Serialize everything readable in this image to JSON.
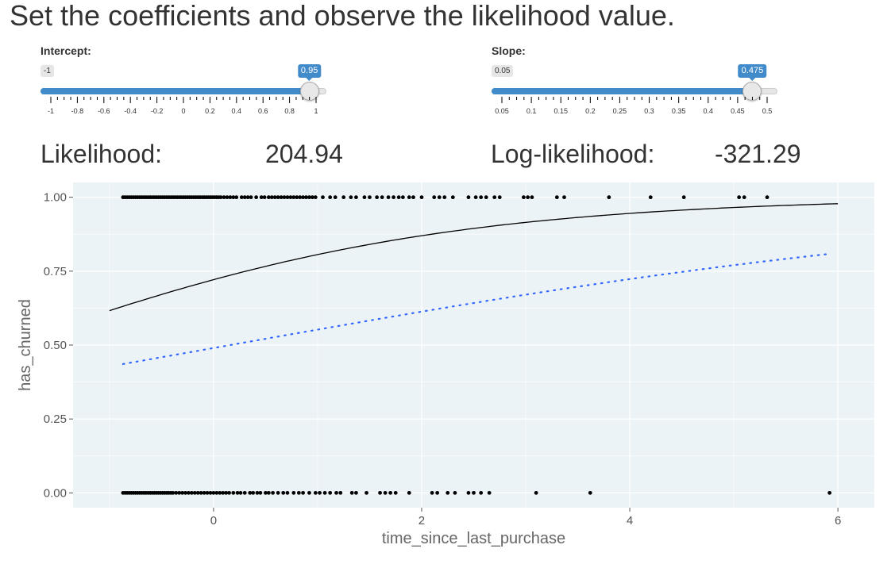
{
  "page": {
    "title": "Set the coefficients and observe the likelihood value."
  },
  "sliders": {
    "intercept": {
      "label": "Intercept:",
      "min": -1,
      "max": 1,
      "value": 0.95,
      "min_text": "-1",
      "value_text": "0.95",
      "ticks": [
        "-1",
        "-0.8",
        "-0.6",
        "-0.4",
        "-0.2",
        "0",
        "0.2",
        "0.4",
        "0.6",
        "0.8",
        "1"
      ],
      "step": 0.05
    },
    "slope": {
      "label": "Slope:",
      "min": 0.05,
      "max": 0.5,
      "value": 0.475,
      "min_text": "0.05",
      "value_text": "0.475",
      "ticks": [
        "0.05",
        "0.1",
        "0.15",
        "0.2",
        "0.25",
        "0.3",
        "0.35",
        "0.4",
        "0.45",
        "0.5"
      ],
      "step": 0.025
    }
  },
  "metrics": {
    "likelihood_label": "Likelihood:",
    "likelihood_value": "204.94",
    "loglik_label": "Log-likelihood:",
    "loglik_value": "-321.29"
  },
  "colors": {
    "accent": "#428bca",
    "panel_bg": "#ebf3f6",
    "grid": "#ffffff",
    "points": "#000000",
    "fit_line": "#000000",
    "dotted_line": "#3366ff"
  },
  "chart_data": {
    "type": "scatter",
    "xlabel": "time_since_last_purchase",
    "ylabel": "has_churned",
    "xlim": [
      -1.35,
      6.35
    ],
    "ylim": [
      -0.05,
      1.05
    ],
    "x_ticks": [
      0,
      2,
      4,
      6
    ],
    "y_ticks": [
      0,
      0.25,
      0.5,
      0.75,
      1.0
    ],
    "x_tick_labels": [
      "0",
      "2",
      "4",
      "6"
    ],
    "y_tick_labels": [
      "0.00",
      "0.25",
      "0.50",
      "0.75",
      "1.00"
    ],
    "grid": true,
    "series": [
      {
        "kind": "points",
        "y": 1.0,
        "x": [
          -0.87,
          -0.85,
          -0.83,
          -0.81,
          -0.79,
          -0.77,
          -0.75,
          -0.73,
          -0.71,
          -0.69,
          -0.67,
          -0.65,
          -0.63,
          -0.61,
          -0.59,
          -0.57,
          -0.55,
          -0.53,
          -0.51,
          -0.49,
          -0.47,
          -0.45,
          -0.43,
          -0.41,
          -0.39,
          -0.37,
          -0.35,
          -0.33,
          -0.31,
          -0.29,
          -0.27,
          -0.25,
          -0.23,
          -0.21,
          -0.19,
          -0.17,
          -0.15,
          -0.13,
          -0.11,
          -0.09,
          -0.07,
          -0.05,
          -0.03,
          -0.01,
          0.01,
          0.03,
          0.05,
          0.07,
          0.1,
          0.13,
          0.16,
          0.19,
          0.22,
          0.27,
          0.3,
          0.33,
          0.36,
          0.41,
          0.46,
          0.49,
          0.53,
          0.56,
          0.59,
          0.62,
          0.65,
          0.68,
          0.71,
          0.74,
          0.77,
          0.8,
          0.83,
          0.86,
          0.89,
          0.92,
          0.95,
          0.98,
          1.05,
          1.12,
          1.17,
          1.25,
          1.32,
          1.37,
          1.45,
          1.5,
          1.57,
          1.62,
          1.68,
          1.73,
          1.78,
          1.82,
          1.88,
          1.92,
          2.0,
          2.12,
          2.17,
          2.22,
          2.3,
          2.45,
          2.52,
          2.57,
          2.62,
          2.7,
          2.75,
          2.98,
          3.02,
          3.06,
          3.3,
          3.37,
          3.8,
          4.2,
          4.52,
          5.05,
          5.1,
          5.32
        ]
      },
      {
        "kind": "points",
        "y": 0.0,
        "x": [
          -0.87,
          -0.85,
          -0.83,
          -0.81,
          -0.79,
          -0.77,
          -0.75,
          -0.73,
          -0.71,
          -0.69,
          -0.67,
          -0.65,
          -0.63,
          -0.61,
          -0.59,
          -0.57,
          -0.55,
          -0.53,
          -0.51,
          -0.49,
          -0.47,
          -0.45,
          -0.43,
          -0.41,
          -0.39,
          -0.36,
          -0.33,
          -0.3,
          -0.27,
          -0.24,
          -0.21,
          -0.18,
          -0.15,
          -0.12,
          -0.09,
          -0.06,
          -0.03,
          0.0,
          0.03,
          0.06,
          0.09,
          0.12,
          0.15,
          0.19,
          0.23,
          0.26,
          0.3,
          0.35,
          0.38,
          0.42,
          0.45,
          0.5,
          0.53,
          0.57,
          0.62,
          0.67,
          0.71,
          0.77,
          0.82,
          0.86,
          0.92,
          0.98,
          1.02,
          1.07,
          1.12,
          1.18,
          1.22,
          1.33,
          1.37,
          1.47,
          1.6,
          1.65,
          1.7,
          1.75,
          1.88,
          2.1,
          2.15,
          2.25,
          2.32,
          2.45,
          2.5,
          2.57,
          2.65,
          3.1,
          3.62,
          5.92
        ]
      },
      {
        "kind": "line",
        "name": "",
        "intercept": 0.95,
        "slope": 0.475,
        "x_range": [
          -1.0,
          6.0
        ]
      },
      {
        "kind": "dotted-line",
        "name": "",
        "intercept": -0.04,
        "slope": 0.25,
        "x_range": [
          -0.87,
          5.92
        ]
      }
    ]
  }
}
